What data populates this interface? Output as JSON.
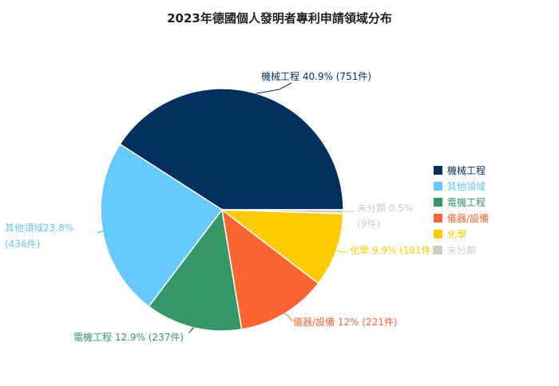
{
  "chart_data": {
    "type": "pie",
    "title": "2023年德國個人發明者專利申請領域分布",
    "slices": [
      {
        "name": "機械工程",
        "percent": 40.9,
        "count": "751件",
        "label": "機械工程 40.9% (751件)",
        "color": "#02305f"
      },
      {
        "name": "其他領域",
        "percent": 23.8,
        "count": "436件",
        "label_lines": [
          "其他領域23.8%",
          "(436件)"
        ],
        "color": "#66c9fb"
      },
      {
        "name": "電機工程",
        "percent": 12.9,
        "count": "237件",
        "label": "電機工程 12.9% (237件)",
        "color": "#349966"
      },
      {
        "name": "儀器/設備",
        "percent": 12.0,
        "count": "221件",
        "label": "儀器/設備 12% (221件)",
        "color": "#fe6432"
      },
      {
        "name": "化學",
        "percent": 9.9,
        "count": "181件",
        "label": "化學 9.9% (181件)",
        "color": "#fecc00"
      },
      {
        "name": "未分類",
        "percent": 0.5,
        "count": "9件",
        "label_lines": [
          "未分類 0.5%",
          "(9件)"
        ],
        "color": "#cccccc"
      }
    ],
    "legend": {
      "position": "right",
      "items": [
        "機械工程",
        "其他領域",
        "電機工程",
        "儀器/設備",
        "化學",
        "未分類"
      ]
    }
  }
}
